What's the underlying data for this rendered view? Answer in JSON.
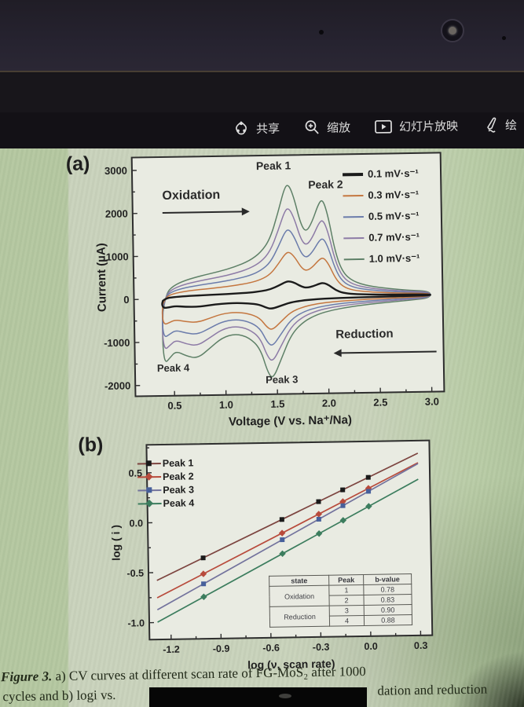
{
  "toolbar": {
    "items": [
      {
        "icon": "share-icon",
        "label": "共享"
      },
      {
        "icon": "zoom-icon",
        "label": "缩放"
      },
      {
        "icon": "slideshow-icon",
        "label": "幻灯片放映"
      },
      {
        "icon": "pen-icon",
        "label": "绘"
      }
    ]
  },
  "figure": {
    "panel_a_label": "(a)",
    "panel_b_label": "(b)",
    "annotations_a": {
      "peak1": "Peak 1",
      "peak2": "Peak 2",
      "peak3": "Peak 3",
      "peak4": "Peak 4",
      "oxidation": "Oxidation",
      "reduction": "Reduction"
    },
    "caption_fig_label": "Figure 3.",
    "caption_line1_rest": " a) CV curves at different scan rate of FG-MoS₂ after 1000",
    "caption_line2_left": "cycles and b) logi vs.",
    "caption_line2_right": "dation and reduction"
  },
  "chart_data": [
    {
      "id": "cv-curves",
      "type": "line",
      "title": "",
      "xlabel": "Voltage (V vs. Na⁺/Na)",
      "ylabel": "Current (µA)",
      "xlim": [
        0.12,
        3.12
      ],
      "ylim": [
        -2250,
        3300
      ],
      "xticks": [
        0.5,
        1.0,
        1.5,
        2.0,
        2.5,
        3.0
      ],
      "xtick_labels": [
        "0.5",
        "1.0",
        "1.5",
        "2.0",
        "2.5",
        "3.0"
      ],
      "yticks": [
        3000,
        2000,
        1000,
        0,
        -1000,
        -2000
      ],
      "ytick_labels": [
        "3000",
        "2000",
        "1000",
        "0",
        "-1000",
        "-2000"
      ],
      "grid": false,
      "legend_position": "top-right",
      "series": [
        {
          "name": "0.1 mV·s⁻¹",
          "color": "#1b1b1b",
          "scale": 0.14,
          "width": 2.4
        },
        {
          "name": "0.3 mV·s⁻¹",
          "color": "#c4763f",
          "scale": 0.4,
          "width": 1.5
        },
        {
          "name": "0.5 mV·s⁻¹",
          "color": "#6b7cab",
          "scale": 0.6,
          "width": 1.5
        },
        {
          "name": "0.7 mV·s⁻¹",
          "color": "#8d7ba6",
          "scale": 0.79,
          "width": 1.5
        },
        {
          "name": "1.0 mV·s⁻¹",
          "color": "#5e8067",
          "scale": 1.0,
          "width": 1.5
        }
      ],
      "base_anodic": [
        [
          0.4,
          -300
        ],
        [
          0.43,
          120
        ],
        [
          0.5,
          300
        ],
        [
          0.62,
          430
        ],
        [
          0.78,
          530
        ],
        [
          0.95,
          620
        ],
        [
          1.1,
          720
        ],
        [
          1.25,
          860
        ],
        [
          1.36,
          1050
        ],
        [
          1.45,
          1350
        ],
        [
          1.53,
          1950
        ],
        [
          1.6,
          2560
        ],
        [
          1.64,
          2620
        ],
        [
          1.69,
          2300
        ],
        [
          1.75,
          1700
        ],
        [
          1.8,
          1500
        ],
        [
          1.86,
          1720
        ],
        [
          1.93,
          2180
        ],
        [
          1.97,
          2260
        ],
        [
          2.02,
          1850
        ],
        [
          2.08,
          1050
        ],
        [
          2.15,
          560
        ],
        [
          2.25,
          340
        ],
        [
          2.4,
          230
        ],
        [
          2.6,
          160
        ],
        [
          2.8,
          115
        ],
        [
          3.0,
          85
        ]
      ],
      "base_cathodic": [
        [
          3.0,
          -70
        ],
        [
          2.8,
          -115
        ],
        [
          2.6,
          -155
        ],
        [
          2.4,
          -195
        ],
        [
          2.2,
          -255
        ],
        [
          2.05,
          -315
        ],
        [
          1.9,
          -410
        ],
        [
          1.76,
          -580
        ],
        [
          1.64,
          -880
        ],
        [
          1.54,
          -1450
        ],
        [
          1.46,
          -1900
        ],
        [
          1.41,
          -1750
        ],
        [
          1.34,
          -1180
        ],
        [
          1.23,
          -920
        ],
        [
          1.1,
          -830
        ],
        [
          0.97,
          -920
        ],
        [
          0.85,
          -1160
        ],
        [
          0.73,
          -1390
        ],
        [
          0.62,
          -1330
        ],
        [
          0.52,
          -1210
        ],
        [
          0.46,
          -1370
        ],
        [
          0.41,
          -1500
        ],
        [
          0.39,
          -1000
        ],
        [
          0.4,
          -300
        ]
      ]
    },
    {
      "id": "log-log-b-value",
      "type": "scatter",
      "title": "",
      "xlabel": "log (ν, scan rate)",
      "ylabel": "log ( i )",
      "xlim": [
        -1.33,
        0.37
      ],
      "ylim": [
        -1.17,
        0.78
      ],
      "xticks": [
        -1.2,
        -0.9,
        -0.6,
        -0.3,
        0.0,
        0.3
      ],
      "xtick_labels": [
        "-1.2",
        "-0.9",
        "-0.6",
        "-0.3",
        "0.0",
        "0.3"
      ],
      "yticks": [
        0.5,
        0.0,
        -0.5,
        -1.0
      ],
      "ytick_labels": [
        "0.5",
        "0.0",
        "-0.5",
        "-1.0"
      ],
      "grid": false,
      "legend_position": "top-left",
      "x_points": [
        -1.0,
        -0.523,
        -0.301,
        -0.155,
        0.0
      ],
      "line_x_range": [
        -1.28,
        0.3
      ],
      "series": [
        {
          "name": "Peak 1",
          "b_value": 0.78,
          "intercept": 0.42,
          "color": "#1a1a1a",
          "line_color": "#7d4540",
          "marker": "square"
        },
        {
          "name": "Peak 2",
          "b_value": 0.83,
          "intercept": 0.31,
          "color": "#b84b3c",
          "line_color": "#b84b3c",
          "marker": "diamond"
        },
        {
          "name": "Peak 3",
          "b_value": 0.9,
          "intercept": 0.28,
          "color": "#47609b",
          "line_color": "#73739d",
          "marker": "square"
        },
        {
          "name": "Peak 4",
          "b_value": 0.88,
          "intercept": 0.13,
          "color": "#3c7d5e",
          "line_color": "#3c7d5e",
          "marker": "diamond"
        }
      ],
      "inset_table": {
        "headers": [
          "state",
          "Peak",
          "b-value"
        ],
        "groups": [
          {
            "state": "Oxidation",
            "rows": [
              {
                "peak": "1",
                "b": "0.78"
              },
              {
                "peak": "2",
                "b": "0.83"
              }
            ]
          },
          {
            "state": "Reduction",
            "rows": [
              {
                "peak": "3",
                "b": "0.90"
              },
              {
                "peak": "4",
                "b": "0.88"
              }
            ]
          }
        ]
      }
    }
  ]
}
